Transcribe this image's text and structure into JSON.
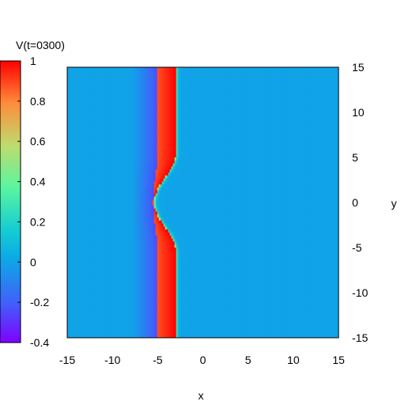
{
  "chart_data": {
    "type": "heatmap",
    "title": "",
    "xlabel": "x",
    "ylabel": "y",
    "xlim": [
      -15,
      15
    ],
    "ylim": [
      -15,
      15
    ],
    "x_ticks": [
      -15,
      -10,
      -5,
      0,
      5,
      10,
      15
    ],
    "y_ticks": [
      15,
      10,
      5,
      0,
      -5,
      -10,
      -15
    ],
    "colorbar": {
      "label": "V(t=0300)",
      "range": [
        -0.4,
        1
      ],
      "ticks": [
        1,
        0.8,
        0.6,
        0.4,
        0.2,
        0,
        -0.2,
        -0.4
      ],
      "colormap": "rainbow"
    },
    "field": {
      "background_value": 0,
      "refractory_min_value": -0.25,
      "excited_value": 1,
      "front_x_far": -3,
      "front_x_center": -5.4,
      "back_x_far": -5,
      "back_x_center": -5.5,
      "bump_y_halfwidth": 5.5,
      "refractory_x_start": -8
    }
  }
}
